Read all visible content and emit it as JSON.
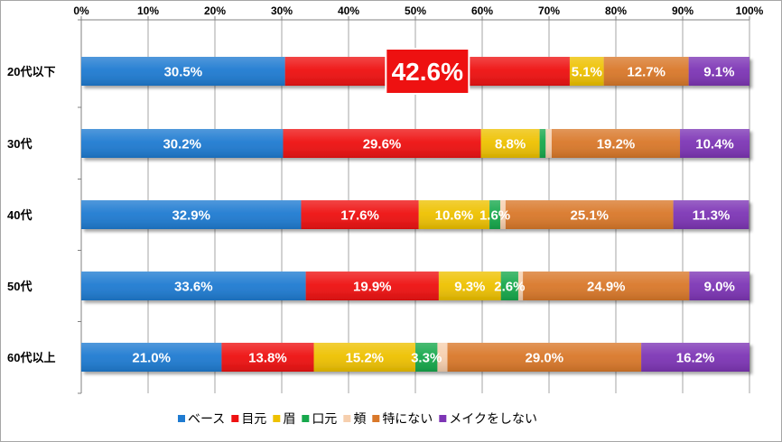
{
  "chart_data": {
    "type": "bar",
    "orientation": "horizontal",
    "stacked": "percent",
    "categories": [
      "20代以下",
      "30代",
      "40代",
      "50代",
      "60代以上"
    ],
    "series": [
      {
        "name": "ベース",
        "color": "#1f7bd1",
        "values": [
          30.5,
          30.2,
          32.9,
          33.6,
          21.0
        ],
        "labels": [
          "30.5%",
          "30.2%",
          "32.9%",
          "33.6%",
          "21.0%"
        ]
      },
      {
        "name": "目元",
        "color": "#ee1111",
        "values": [
          42.6,
          29.6,
          17.6,
          19.9,
          13.8
        ],
        "labels": [
          "42.6%",
          "29.6%",
          "17.6%",
          "19.9%",
          "13.8%"
        ]
      },
      {
        "name": "眉",
        "color": "#eec100",
        "values": [
          5.1,
          8.8,
          10.6,
          9.3,
          15.2
        ],
        "labels": [
          "5.1%",
          "8.8%",
          "10.6%",
          "9.3%",
          "15.2%"
        ]
      },
      {
        "name": "口元",
        "color": "#17a84c",
        "values": [
          0.0,
          0.9,
          1.6,
          2.6,
          3.3
        ],
        "labels": [
          "",
          "",
          "1.6%",
          "2.6%",
          "3.3%"
        ]
      },
      {
        "name": "頬",
        "color": "#f6cfae",
        "values": [
          0.0,
          0.9,
          0.8,
          0.7,
          1.5
        ],
        "labels": [
          "",
          "",
          "",
          "",
          ""
        ]
      },
      {
        "name": "特にない",
        "color": "#d9782a",
        "values": [
          12.7,
          19.2,
          25.1,
          24.9,
          29.0
        ],
        "labels": [
          "12.7%",
          "19.2%",
          "25.1%",
          "24.9%",
          "29.0%"
        ]
      },
      {
        "name": "メイクをしない",
        "color": "#7d35b5",
        "values": [
          9.1,
          10.4,
          11.3,
          9.0,
          16.2
        ],
        "labels": [
          "9.1%",
          "10.4%",
          "11.3%",
          "9.0%",
          "16.2%"
        ]
      }
    ],
    "x_ticks": [
      "0%",
      "10%",
      "20%",
      "30%",
      "40%",
      "50%",
      "60%",
      "70%",
      "80%",
      "90%",
      "100%"
    ],
    "xlim": [
      0,
      100
    ],
    "highlight": {
      "category_index": 0,
      "series_index": 1,
      "label": "42.6%",
      "color": "#ee1111"
    },
    "grid": true,
    "legend": "bottom",
    "title": "",
    "xlabel": "",
    "ylabel": ""
  }
}
